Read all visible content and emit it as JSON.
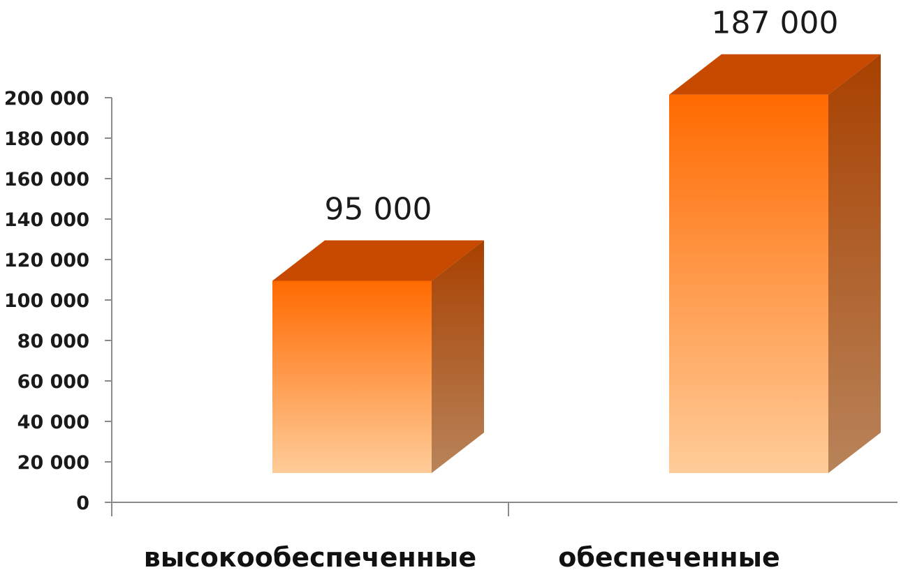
{
  "chart_data": {
    "type": "bar",
    "style": "3d-column",
    "categories": [
      "высокообеспеченные",
      "обеспеченные"
    ],
    "values": [
      95000,
      187000
    ],
    "value_labels": [
      "95 000",
      "187 000"
    ],
    "ylim": [
      0,
      200000
    ],
    "yticks": [
      0,
      20000,
      40000,
      60000,
      80000,
      100000,
      120000,
      140000,
      160000,
      180000,
      200000
    ],
    "ytick_labels": [
      "0",
      "20 000",
      "40 000",
      "60 000",
      "80 000",
      "100 000",
      "120 000",
      "140 000",
      "160 000",
      "180 000",
      "200 000"
    ],
    "grid": false,
    "legend": "none",
    "colors": {
      "front_top": "#ff6a00",
      "front_bottom": "#ffcc99",
      "top_face": "#c84a00",
      "side_top": "#a84000",
      "side_bottom": "#b8845a"
    }
  }
}
